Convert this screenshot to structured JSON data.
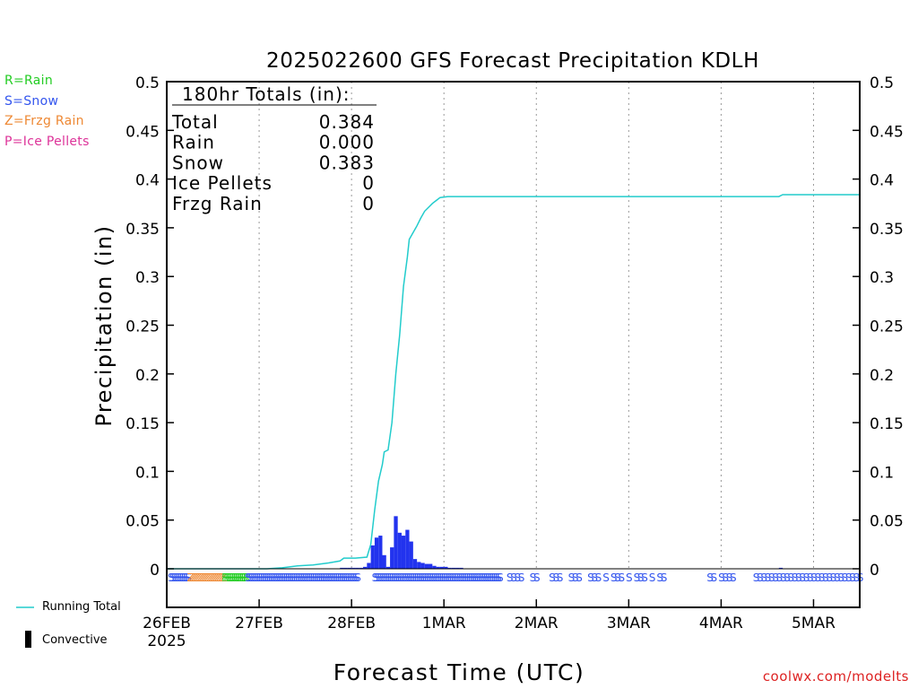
{
  "legend": {
    "rain": "R=Rain",
    "snow": "S=Snow",
    "frzg": "Z=Frzg Rain",
    "ice": "P=Ice Pellets",
    "running_total": "Running Total",
    "convective": "Convective"
  },
  "credit": "coolwx.com/modelts",
  "colors": {
    "rain": "#22cc22",
    "snow": "#3355ee",
    "frzg": "#ee8833",
    "ice": "#dd3399",
    "running_total": "#22cccc",
    "bars": "#2233ee",
    "convective": "#000000",
    "credit": "#dd2222"
  },
  "totals_box": {
    "heading": "180hr Totals (in):",
    "rows": [
      {
        "label": "Total",
        "value": "0.384"
      },
      {
        "label": "Rain",
        "value": "0.000"
      },
      {
        "label": "Snow",
        "value": "0.383"
      },
      {
        "label": "Ice Pellets",
        "value": "0"
      },
      {
        "label": "Frzg Rain",
        "value": "0"
      }
    ]
  },
  "chart_data": {
    "type": "bar",
    "title": "2025022600 GFS Forecast Precipitation KDLH",
    "xlabel": "Forecast Time (UTC)",
    "ylabel": "Precipitation (in)",
    "ylim": [
      0,
      0.5
    ],
    "xlim_hours": [
      0,
      180
    ],
    "y_ticks": [
      "0",
      "0.05",
      "0.1",
      "0.15",
      "0.2",
      "0.25",
      "0.3",
      "0.35",
      "0.4",
      "0.45",
      "0.5"
    ],
    "x_ticks": [
      {
        "hour": 0,
        "label": "26FEB",
        "sublabel": "2025"
      },
      {
        "hour": 24,
        "label": "27FEB"
      },
      {
        "hour": 48,
        "label": "28FEB"
      },
      {
        "hour": 72,
        "label": "1MAR"
      },
      {
        "hour": 96,
        "label": "2MAR"
      },
      {
        "hour": 120,
        "label": "3MAR"
      },
      {
        "hour": 144,
        "label": "4MAR"
      },
      {
        "hour": 168,
        "label": "5MAR"
      }
    ],
    "grid": "vertical-dotted",
    "series": [
      {
        "name": "Running Total",
        "type": "line",
        "points": [
          [
            0,
            0
          ],
          [
            26,
            0
          ],
          [
            30,
            0.001
          ],
          [
            34,
            0.003
          ],
          [
            38,
            0.004
          ],
          [
            42,
            0.006
          ],
          [
            45,
            0.008
          ],
          [
            46,
            0.011
          ],
          [
            49,
            0.011
          ],
          [
            52,
            0.012
          ],
          [
            53,
            0.025
          ],
          [
            54,
            0.06
          ],
          [
            55,
            0.09
          ],
          [
            56,
            0.107
          ],
          [
            56.5,
            0.12
          ],
          [
            57.5,
            0.122
          ],
          [
            58.5,
            0.15
          ],
          [
            59.5,
            0.2
          ],
          [
            60.5,
            0.24
          ],
          [
            61.5,
            0.29
          ],
          [
            62.5,
            0.32
          ],
          [
            63,
            0.338
          ],
          [
            64,
            0.345
          ],
          [
            65,
            0.352
          ],
          [
            66,
            0.36
          ],
          [
            67,
            0.367
          ],
          [
            68,
            0.371
          ],
          [
            69,
            0.375
          ],
          [
            70,
            0.378
          ],
          [
            71,
            0.381
          ],
          [
            73,
            0.382
          ],
          [
            159,
            0.382
          ],
          [
            160,
            0.384
          ],
          [
            180,
            0.384
          ]
        ]
      },
      {
        "name": "Precipitation",
        "type": "bar",
        "bar_width_hours": 1,
        "bars": [
          [
            45,
            0.001
          ],
          [
            46,
            0.001
          ],
          [
            47,
            0.001
          ],
          [
            48,
            0.001
          ],
          [
            49,
            0.001
          ],
          [
            50,
            0.001
          ],
          [
            51,
            0.002
          ],
          [
            52,
            0.006
          ],
          [
            53,
            0.024
          ],
          [
            54,
            0.032
          ],
          [
            55,
            0.034
          ],
          [
            56,
            0.014
          ],
          [
            57,
            0.002
          ],
          [
            58,
            0.022
          ],
          [
            59,
            0.054
          ],
          [
            60,
            0.037
          ],
          [
            61,
            0.034
          ],
          [
            62,
            0.04
          ],
          [
            63,
            0.028
          ],
          [
            64,
            0.01
          ],
          [
            65,
            0.007
          ],
          [
            66,
            0.006
          ],
          [
            67,
            0.005
          ],
          [
            68,
            0.005
          ],
          [
            69,
            0.003
          ],
          [
            70,
            0.002
          ],
          [
            71,
            0.002
          ],
          [
            72,
            0.002
          ],
          [
            73,
            0.001
          ],
          [
            74,
            0.001
          ],
          [
            75,
            0.001
          ],
          [
            76,
            0.001
          ],
          [
            159,
            0.001
          ]
        ]
      }
    ],
    "ptype_strip": [
      {
        "start": 0,
        "end": 5,
        "type": "S",
        "style": "dense"
      },
      {
        "start": 5,
        "end": 14,
        "type": "Z",
        "style": "dense"
      },
      {
        "start": 14,
        "end": 20,
        "type": "R",
        "style": "dense"
      },
      {
        "start": 20,
        "end": 49,
        "type": "S",
        "style": "dense"
      },
      {
        "start": 53,
        "end": 86,
        "type": "S",
        "style": "dense"
      },
      {
        "start": 88,
        "end": 92,
        "type": "S",
        "style": "sparse"
      },
      {
        "start": 94,
        "end": 96,
        "type": "S",
        "style": "sparse"
      },
      {
        "start": 99,
        "end": 102,
        "type": "S",
        "style": "sparse"
      },
      {
        "start": 104,
        "end": 107,
        "type": "S",
        "style": "sparse"
      },
      {
        "start": 109,
        "end": 112,
        "type": "S",
        "style": "sparse"
      },
      {
        "start": 113,
        "end": 114,
        "type": "S",
        "style": "sparse"
      },
      {
        "start": 115,
        "end": 118,
        "type": "S",
        "style": "sparse"
      },
      {
        "start": 119,
        "end": 120,
        "type": "S",
        "style": "sparse"
      },
      {
        "start": 121,
        "end": 124,
        "type": "S",
        "style": "sparse"
      },
      {
        "start": 125,
        "end": 126,
        "type": "S",
        "style": "sparse"
      },
      {
        "start": 127,
        "end": 129,
        "type": "S",
        "style": "sparse"
      },
      {
        "start": 140,
        "end": 142,
        "type": "S",
        "style": "sparse"
      },
      {
        "start": 143,
        "end": 145,
        "type": "S",
        "style": "sparse"
      },
      {
        "start": 145,
        "end": 147,
        "type": "S",
        "style": "sparse"
      },
      {
        "start": 152,
        "end": 180,
        "type": "S",
        "style": "sparse"
      }
    ]
  }
}
